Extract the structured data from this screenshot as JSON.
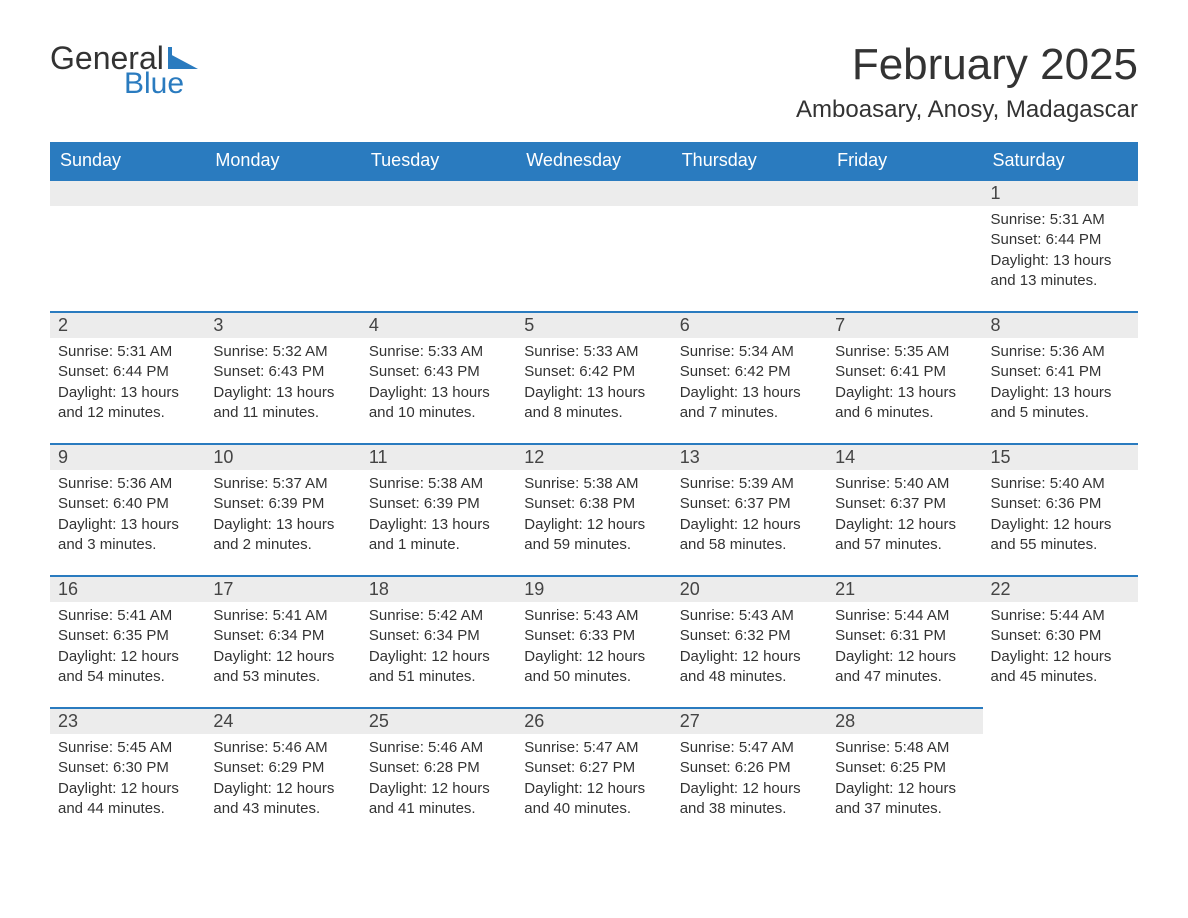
{
  "brand": {
    "word1": "General",
    "word2": "Blue",
    "accent_color": "#2a7bbf"
  },
  "title": "February 2025",
  "location": "Amboasary, Anosy, Madagascar",
  "styles": {
    "header_bg": "#2a7bbf",
    "header_text": "#ffffff",
    "daybar_bg": "#ececec",
    "daybar_border": "#2a7bbf",
    "body_text": "#333333",
    "background": "#ffffff",
    "title_fontsize": 44,
    "location_fontsize": 24,
    "header_fontsize": 18,
    "cell_fontsize": 15
  },
  "day_headers": [
    "Sunday",
    "Monday",
    "Tuesday",
    "Wednesday",
    "Thursday",
    "Friday",
    "Saturday"
  ],
  "weeks": [
    [
      null,
      null,
      null,
      null,
      null,
      null,
      {
        "n": "1",
        "sunrise": "Sunrise: 5:31 AM",
        "sunset": "Sunset: 6:44 PM",
        "daylight": "Daylight: 13 hours and 13 minutes."
      }
    ],
    [
      {
        "n": "2",
        "sunrise": "Sunrise: 5:31 AM",
        "sunset": "Sunset: 6:44 PM",
        "daylight": "Daylight: 13 hours and 12 minutes."
      },
      {
        "n": "3",
        "sunrise": "Sunrise: 5:32 AM",
        "sunset": "Sunset: 6:43 PM",
        "daylight": "Daylight: 13 hours and 11 minutes."
      },
      {
        "n": "4",
        "sunrise": "Sunrise: 5:33 AM",
        "sunset": "Sunset: 6:43 PM",
        "daylight": "Daylight: 13 hours and 10 minutes."
      },
      {
        "n": "5",
        "sunrise": "Sunrise: 5:33 AM",
        "sunset": "Sunset: 6:42 PM",
        "daylight": "Daylight: 13 hours and 8 minutes."
      },
      {
        "n": "6",
        "sunrise": "Sunrise: 5:34 AM",
        "sunset": "Sunset: 6:42 PM",
        "daylight": "Daylight: 13 hours and 7 minutes."
      },
      {
        "n": "7",
        "sunrise": "Sunrise: 5:35 AM",
        "sunset": "Sunset: 6:41 PM",
        "daylight": "Daylight: 13 hours and 6 minutes."
      },
      {
        "n": "8",
        "sunrise": "Sunrise: 5:36 AM",
        "sunset": "Sunset: 6:41 PM",
        "daylight": "Daylight: 13 hours and 5 minutes."
      }
    ],
    [
      {
        "n": "9",
        "sunrise": "Sunrise: 5:36 AM",
        "sunset": "Sunset: 6:40 PM",
        "daylight": "Daylight: 13 hours and 3 minutes."
      },
      {
        "n": "10",
        "sunrise": "Sunrise: 5:37 AM",
        "sunset": "Sunset: 6:39 PM",
        "daylight": "Daylight: 13 hours and 2 minutes."
      },
      {
        "n": "11",
        "sunrise": "Sunrise: 5:38 AM",
        "sunset": "Sunset: 6:39 PM",
        "daylight": "Daylight: 13 hours and 1 minute."
      },
      {
        "n": "12",
        "sunrise": "Sunrise: 5:38 AM",
        "sunset": "Sunset: 6:38 PM",
        "daylight": "Daylight: 12 hours and 59 minutes."
      },
      {
        "n": "13",
        "sunrise": "Sunrise: 5:39 AM",
        "sunset": "Sunset: 6:37 PM",
        "daylight": "Daylight: 12 hours and 58 minutes."
      },
      {
        "n": "14",
        "sunrise": "Sunrise: 5:40 AM",
        "sunset": "Sunset: 6:37 PM",
        "daylight": "Daylight: 12 hours and 57 minutes."
      },
      {
        "n": "15",
        "sunrise": "Sunrise: 5:40 AM",
        "sunset": "Sunset: 6:36 PM",
        "daylight": "Daylight: 12 hours and 55 minutes."
      }
    ],
    [
      {
        "n": "16",
        "sunrise": "Sunrise: 5:41 AM",
        "sunset": "Sunset: 6:35 PM",
        "daylight": "Daylight: 12 hours and 54 minutes."
      },
      {
        "n": "17",
        "sunrise": "Sunrise: 5:41 AM",
        "sunset": "Sunset: 6:34 PM",
        "daylight": "Daylight: 12 hours and 53 minutes."
      },
      {
        "n": "18",
        "sunrise": "Sunrise: 5:42 AM",
        "sunset": "Sunset: 6:34 PM",
        "daylight": "Daylight: 12 hours and 51 minutes."
      },
      {
        "n": "19",
        "sunrise": "Sunrise: 5:43 AM",
        "sunset": "Sunset: 6:33 PM",
        "daylight": "Daylight: 12 hours and 50 minutes."
      },
      {
        "n": "20",
        "sunrise": "Sunrise: 5:43 AM",
        "sunset": "Sunset: 6:32 PM",
        "daylight": "Daylight: 12 hours and 48 minutes."
      },
      {
        "n": "21",
        "sunrise": "Sunrise: 5:44 AM",
        "sunset": "Sunset: 6:31 PM",
        "daylight": "Daylight: 12 hours and 47 minutes."
      },
      {
        "n": "22",
        "sunrise": "Sunrise: 5:44 AM",
        "sunset": "Sunset: 6:30 PM",
        "daylight": "Daylight: 12 hours and 45 minutes."
      }
    ],
    [
      {
        "n": "23",
        "sunrise": "Sunrise: 5:45 AM",
        "sunset": "Sunset: 6:30 PM",
        "daylight": "Daylight: 12 hours and 44 minutes."
      },
      {
        "n": "24",
        "sunrise": "Sunrise: 5:46 AM",
        "sunset": "Sunset: 6:29 PM",
        "daylight": "Daylight: 12 hours and 43 minutes."
      },
      {
        "n": "25",
        "sunrise": "Sunrise: 5:46 AM",
        "sunset": "Sunset: 6:28 PM",
        "daylight": "Daylight: 12 hours and 41 minutes."
      },
      {
        "n": "26",
        "sunrise": "Sunrise: 5:47 AM",
        "sunset": "Sunset: 6:27 PM",
        "daylight": "Daylight: 12 hours and 40 minutes."
      },
      {
        "n": "27",
        "sunrise": "Sunrise: 5:47 AM",
        "sunset": "Sunset: 6:26 PM",
        "daylight": "Daylight: 12 hours and 38 minutes."
      },
      {
        "n": "28",
        "sunrise": "Sunrise: 5:48 AM",
        "sunset": "Sunset: 6:25 PM",
        "daylight": "Daylight: 12 hours and 37 minutes."
      },
      null
    ]
  ]
}
